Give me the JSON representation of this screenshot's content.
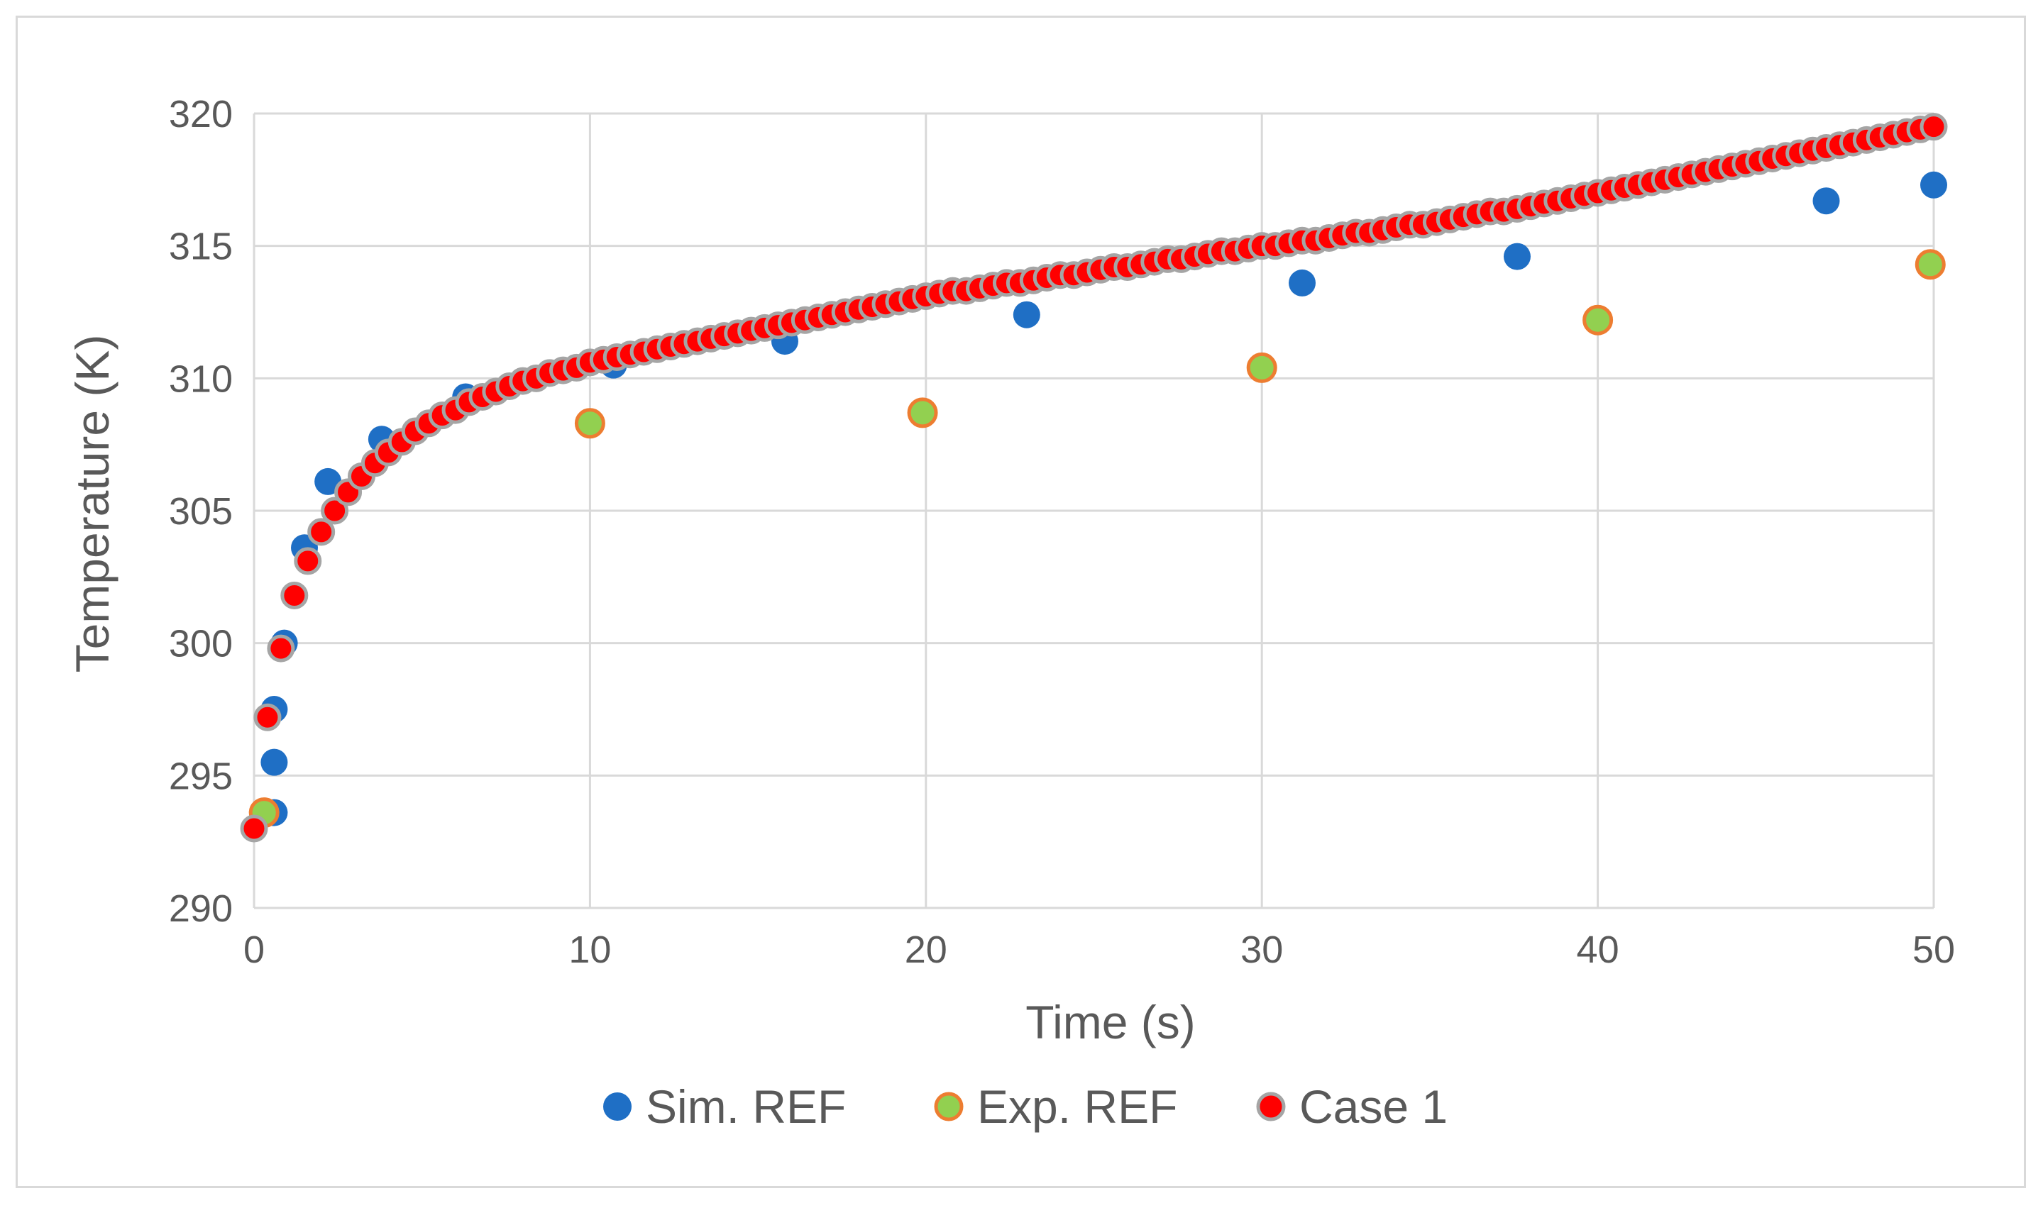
{
  "chart_data": {
    "type": "scatter",
    "xlabel": "Time (s)",
    "ylabel": "Temperature (K)",
    "xlim": [
      0,
      50
    ],
    "ylim": [
      290,
      320
    ],
    "xticks": [
      0,
      10,
      20,
      30,
      40,
      50
    ],
    "yticks": [
      290,
      295,
      300,
      305,
      310,
      315,
      320
    ],
    "grid": true,
    "legend_position": "bottom",
    "series": [
      {
        "name": "Sim. REF",
        "color": "#1f6fc5",
        "edge": "#1f6fc5",
        "points": [
          [
            0.6,
            293.6
          ],
          [
            0.6,
            295.5
          ],
          [
            0.6,
            297.5
          ],
          [
            0.9,
            300.0
          ],
          [
            1.5,
            303.6
          ],
          [
            2.2,
            306.1
          ],
          [
            3.8,
            307.7
          ],
          [
            6.3,
            309.3
          ],
          [
            10.7,
            310.5
          ],
          [
            15.8,
            311.4
          ],
          [
            23.0,
            312.4
          ],
          [
            31.2,
            313.6
          ],
          [
            37.6,
            314.6
          ],
          [
            46.8,
            316.7
          ],
          [
            50.0,
            317.3
          ]
        ]
      },
      {
        "name": "Exp. REF",
        "color": "#92d050",
        "edge": "#ed7d31",
        "points": [
          [
            0.3,
            293.6
          ],
          [
            10.0,
            308.3
          ],
          [
            19.9,
            308.7
          ],
          [
            30.0,
            310.4
          ],
          [
            40.0,
            312.2
          ],
          [
            49.9,
            314.3
          ]
        ]
      },
      {
        "name": "Case 1",
        "color": "#ff0000",
        "edge": "#a5a5a5",
        "points": [
          [
            0.0,
            293.0
          ],
          [
            0.4,
            297.2
          ],
          [
            0.8,
            299.8
          ],
          [
            1.2,
            301.8
          ],
          [
            1.6,
            303.1
          ],
          [
            2.0,
            304.2
          ],
          [
            2.4,
            305.0
          ],
          [
            2.8,
            305.7
          ],
          [
            3.2,
            306.3
          ],
          [
            3.6,
            306.8
          ],
          [
            4.0,
            307.2
          ],
          [
            4.4,
            307.6
          ],
          [
            4.8,
            308.0
          ],
          [
            5.2,
            308.3
          ],
          [
            5.6,
            308.6
          ],
          [
            6.0,
            308.8
          ],
          [
            6.4,
            309.1
          ],
          [
            6.8,
            309.3
          ],
          [
            7.2,
            309.5
          ],
          [
            7.6,
            309.7
          ],
          [
            8.0,
            309.9
          ],
          [
            8.4,
            310.0
          ],
          [
            8.8,
            310.2
          ],
          [
            9.2,
            310.3
          ],
          [
            9.6,
            310.4
          ],
          [
            10.0,
            310.6
          ],
          [
            10.4,
            310.7
          ],
          [
            10.8,
            310.8
          ],
          [
            11.2,
            310.9
          ],
          [
            11.6,
            311.0
          ],
          [
            12.0,
            311.1
          ],
          [
            12.4,
            311.2
          ],
          [
            12.8,
            311.3
          ],
          [
            13.2,
            311.4
          ],
          [
            13.6,
            311.5
          ],
          [
            14.0,
            311.6
          ],
          [
            14.4,
            311.7
          ],
          [
            14.8,
            311.8
          ],
          [
            15.2,
            311.9
          ],
          [
            15.6,
            312.0
          ],
          [
            16.0,
            312.1
          ],
          [
            16.4,
            312.2
          ],
          [
            16.8,
            312.3
          ],
          [
            17.2,
            312.4
          ],
          [
            17.6,
            312.5
          ],
          [
            18.0,
            312.6
          ],
          [
            18.4,
            312.7
          ],
          [
            18.8,
            312.8
          ],
          [
            19.2,
            312.9
          ],
          [
            19.6,
            313.0
          ],
          [
            20.0,
            313.1
          ],
          [
            20.4,
            313.2
          ],
          [
            20.8,
            313.3
          ],
          [
            21.2,
            313.3
          ],
          [
            21.6,
            313.4
          ],
          [
            22.0,
            313.5
          ],
          [
            22.4,
            313.6
          ],
          [
            22.8,
            313.6
          ],
          [
            23.2,
            313.7
          ],
          [
            23.6,
            313.8
          ],
          [
            24.0,
            313.9
          ],
          [
            24.4,
            313.9
          ],
          [
            24.8,
            314.0
          ],
          [
            25.2,
            314.1
          ],
          [
            25.6,
            314.2
          ],
          [
            26.0,
            314.2
          ],
          [
            26.4,
            314.3
          ],
          [
            26.8,
            314.4
          ],
          [
            27.2,
            314.5
          ],
          [
            27.6,
            314.5
          ],
          [
            28.0,
            314.6
          ],
          [
            28.4,
            314.7
          ],
          [
            28.8,
            314.8
          ],
          [
            29.2,
            314.8
          ],
          [
            29.6,
            314.9
          ],
          [
            30.0,
            315.0
          ],
          [
            30.4,
            315.0
          ],
          [
            30.8,
            315.1
          ],
          [
            31.2,
            315.2
          ],
          [
            31.6,
            315.2
          ],
          [
            32.0,
            315.3
          ],
          [
            32.4,
            315.4
          ],
          [
            32.8,
            315.5
          ],
          [
            33.2,
            315.5
          ],
          [
            33.6,
            315.6
          ],
          [
            34.0,
            315.7
          ],
          [
            34.4,
            315.8
          ],
          [
            34.8,
            315.8
          ],
          [
            35.2,
            315.9
          ],
          [
            35.6,
            316.0
          ],
          [
            36.0,
            316.1
          ],
          [
            36.4,
            316.2
          ],
          [
            36.8,
            316.3
          ],
          [
            37.2,
            316.3
          ],
          [
            37.6,
            316.4
          ],
          [
            38.0,
            316.5
          ],
          [
            38.4,
            316.6
          ],
          [
            38.8,
            316.7
          ],
          [
            39.2,
            316.8
          ],
          [
            39.6,
            316.9
          ],
          [
            40.0,
            317.0
          ],
          [
            40.4,
            317.1
          ],
          [
            40.8,
            317.2
          ],
          [
            41.2,
            317.3
          ],
          [
            41.6,
            317.4
          ],
          [
            42.0,
            317.5
          ],
          [
            42.4,
            317.6
          ],
          [
            42.8,
            317.7
          ],
          [
            43.2,
            317.8
          ],
          [
            43.6,
            317.9
          ],
          [
            44.0,
            318.0
          ],
          [
            44.4,
            318.1
          ],
          [
            44.8,
            318.2
          ],
          [
            45.2,
            318.3
          ],
          [
            45.6,
            318.4
          ],
          [
            46.0,
            318.5
          ],
          [
            46.4,
            318.6
          ],
          [
            46.8,
            318.7
          ],
          [
            47.2,
            318.8
          ],
          [
            47.6,
            318.9
          ],
          [
            48.0,
            319.0
          ],
          [
            48.4,
            319.1
          ],
          [
            48.8,
            319.2
          ],
          [
            49.2,
            319.3
          ],
          [
            49.6,
            319.4
          ],
          [
            50.0,
            319.5
          ]
        ]
      }
    ]
  }
}
